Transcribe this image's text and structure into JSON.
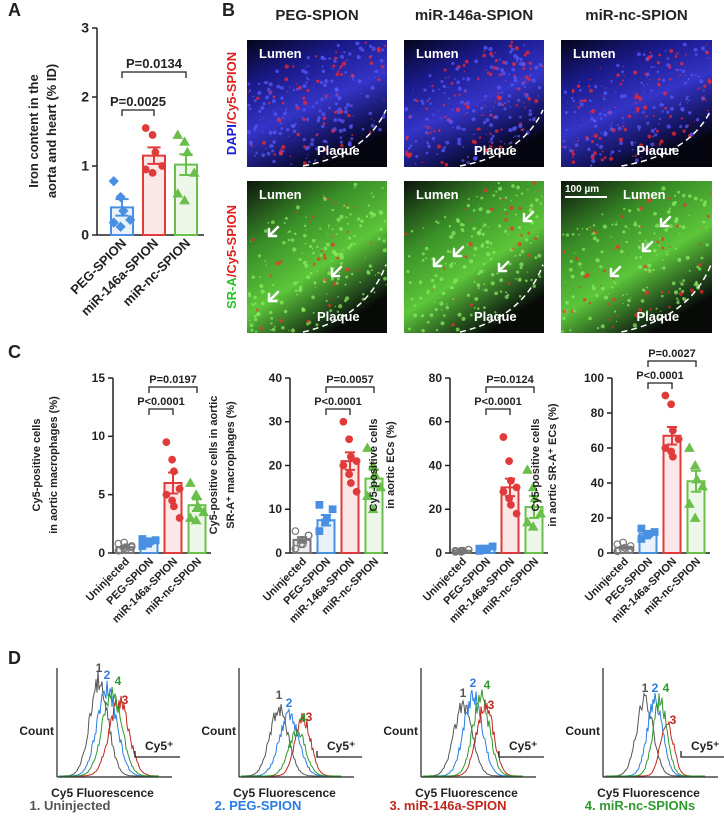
{
  "panel_labels": [
    "A",
    "B",
    "C",
    "D"
  ],
  "chart_data": [
    {
      "type": "bar",
      "ylabel": [
        "Iron content in the",
        "aorta and heart (% ID)"
      ],
      "categories": [
        "PEG-SPION",
        "miR-146a-SPION",
        "miR-nc-SPION"
      ],
      "values": [
        0.4,
        1.15,
        1.02
      ],
      "errors": [
        0.12,
        0.12,
        0.15
      ],
      "points": [
        [
          0.78,
          0.55,
          0.35,
          0.22,
          0.18,
          0.12
        ],
        [
          1.55,
          1.45,
          1.2,
          1.0,
          0.95,
          0.9
        ],
        [
          1.45,
          1.35,
          1.2,
          0.9,
          0.6,
          0.5
        ]
      ],
      "colors": [
        "#4a90e2",
        "#e03a3a",
        "#6abf4b"
      ],
      "markers": [
        "diamond",
        "circle",
        "triangle"
      ],
      "ylim": [
        0,
        3
      ],
      "yticks": [
        0,
        1,
        2,
        3
      ],
      "annotations": [
        "P=0.0134",
        "P=0.0025"
      ]
    },
    {
      "type": "bar",
      "ylabel": [
        "Cy5-positive cells",
        "in aortic macrophages (%)"
      ],
      "categories": [
        "Uninjected",
        "PEG-SPION",
        "miR-146a-SPION",
        "miR-nc-SPION"
      ],
      "values": [
        0.5,
        0.9,
        6.0,
        4.1
      ],
      "errors": [
        0.1,
        0.1,
        0.9,
        0.5
      ],
      "points": [
        [
          0.2,
          0.4,
          0.5,
          0.6,
          0.8,
          0.9,
          0.3,
          0.5
        ],
        [
          0.6,
          0.8,
          1.0,
          1.1,
          1.2
        ],
        [
          9.5,
          8.0,
          7.0,
          5.5,
          5.0,
          4.5,
          4.0,
          3.0
        ],
        [
          6.0,
          5.0,
          4.0,
          3.5,
          3.0,
          2.8
        ]
      ],
      "colors": [
        "#777777",
        "#4a90e2",
        "#e03a3a",
        "#6abf4b"
      ],
      "markers": [
        "circle",
        "square",
        "circle",
        "triangle"
      ],
      "ylim": [
        0,
        15
      ],
      "yticks": [
        0,
        5,
        10,
        15
      ],
      "annotations": [
        "P=0.0197",
        "P<0.0001"
      ]
    },
    {
      "type": "bar",
      "ylabel": [
        "Cy5-positive cells in aortic",
        "SR-A⁺ macrophages (%)"
      ],
      "categories": [
        "Uninjected",
        "PEG-SPION",
        "miR-146a-SPION",
        "miR-nc-SPION"
      ],
      "values": [
        3,
        7.5,
        21,
        17
      ],
      "errors": [
        0.6,
        1.2,
        2,
        2
      ],
      "points": [
        [
          1,
          2,
          3,
          4,
          5,
          3,
          2,
          4
        ],
        [
          5,
          7,
          8,
          10,
          11
        ],
        [
          30,
          26,
          22,
          21,
          20,
          18,
          16,
          14
        ],
        [
          24,
          20,
          18,
          15,
          13,
          10
        ]
      ],
      "colors": [
        "#777777",
        "#4a90e2",
        "#e03a3a",
        "#6abf4b"
      ],
      "markers": [
        "circle",
        "square",
        "circle",
        "triangle"
      ],
      "ylim": [
        0,
        40
      ],
      "yticks": [
        0,
        10,
        20,
        30,
        40
      ],
      "annotations": [
        "P=0.0057",
        "P<0.0001"
      ]
    },
    {
      "type": "bar",
      "ylabel": [
        "Cy5-positive cells",
        "in aortic ECs (%)"
      ],
      "categories": [
        "Uninjected",
        "PEG-SPION",
        "miR-146a-SPION",
        "miR-nc-SPION"
      ],
      "values": [
        1,
        2,
        30,
        21
      ],
      "errors": [
        0.2,
        0.3,
        4,
        5
      ],
      "points": [
        [
          0.5,
          1,
          1,
          1.5,
          1,
          0.5,
          1,
          1.5
        ],
        [
          1,
          2,
          2,
          3,
          2
        ],
        [
          53,
          42,
          33,
          30,
          28,
          25,
          22,
          18
        ],
        [
          38,
          30,
          25,
          18,
          14,
          12
        ]
      ],
      "colors": [
        "#777777",
        "#4a90e2",
        "#e03a3a",
        "#6abf4b"
      ],
      "markers": [
        "circle",
        "square",
        "circle",
        "triangle"
      ],
      "ylim": [
        0,
        80
      ],
      "yticks": [
        0,
        20,
        40,
        60,
        80
      ],
      "annotations": [
        "P=0.0124",
        "P<0.0001"
      ]
    },
    {
      "type": "bar",
      "ylabel": [
        "Cy5-positive cells",
        "in aortic SR-A⁺ ECs (%)"
      ],
      "categories": [
        "Uninjected",
        "PEG-SPION",
        "miR-146a-SPION",
        "miR-nc-SPION"
      ],
      "values": [
        3,
        11,
        67,
        41
      ],
      "errors": [
        0.6,
        0.9,
        5,
        6
      ],
      "points": [
        [
          1,
          2,
          3,
          4,
          5,
          6,
          3,
          2
        ],
        [
          8,
          10,
          11,
          12,
          14
        ],
        [
          90,
          85,
          70,
          65,
          60,
          58,
          55
        ],
        [
          60,
          50,
          42,
          38,
          28,
          20
        ]
      ],
      "colors": [
        "#777777",
        "#4a90e2",
        "#e03a3a",
        "#6abf4b"
      ],
      "markers": [
        "circle",
        "square",
        "circle",
        "triangle"
      ],
      "ylim": [
        0,
        100
      ],
      "yticks": [
        0,
        20,
        40,
        60,
        80,
        100
      ],
      "annotations": [
        "P=0.0027",
        "P<0.0001"
      ]
    }
  ],
  "images": {
    "columns": [
      "PEG-SPION",
      "miR-146a-SPION",
      "miR-nc-SPION"
    ],
    "row_labels": [
      [
        "DAPI",
        "/Cy5-SPION"
      ],
      [
        "SR-A",
        "/Cy5-SPION"
      ]
    ],
    "lumen": "Lumen",
    "plaque": "Plaque",
    "scale_bar": "100 µm"
  },
  "flow": {
    "count_label": "Count",
    "x_label": "Cy5 Fluorescence",
    "gate_label": "Cy5⁺",
    "curve_labels": [
      "1",
      "2",
      "3",
      "4"
    ],
    "colors": [
      "#555555",
      "#2a7de1",
      "#c0281e",
      "#2e9a2e"
    ],
    "legend": [
      "1. Uninjected",
      "2. PEG-SPION",
      "3. miR-146a-SPION",
      "4. miR-nc-SPIONs"
    ]
  }
}
